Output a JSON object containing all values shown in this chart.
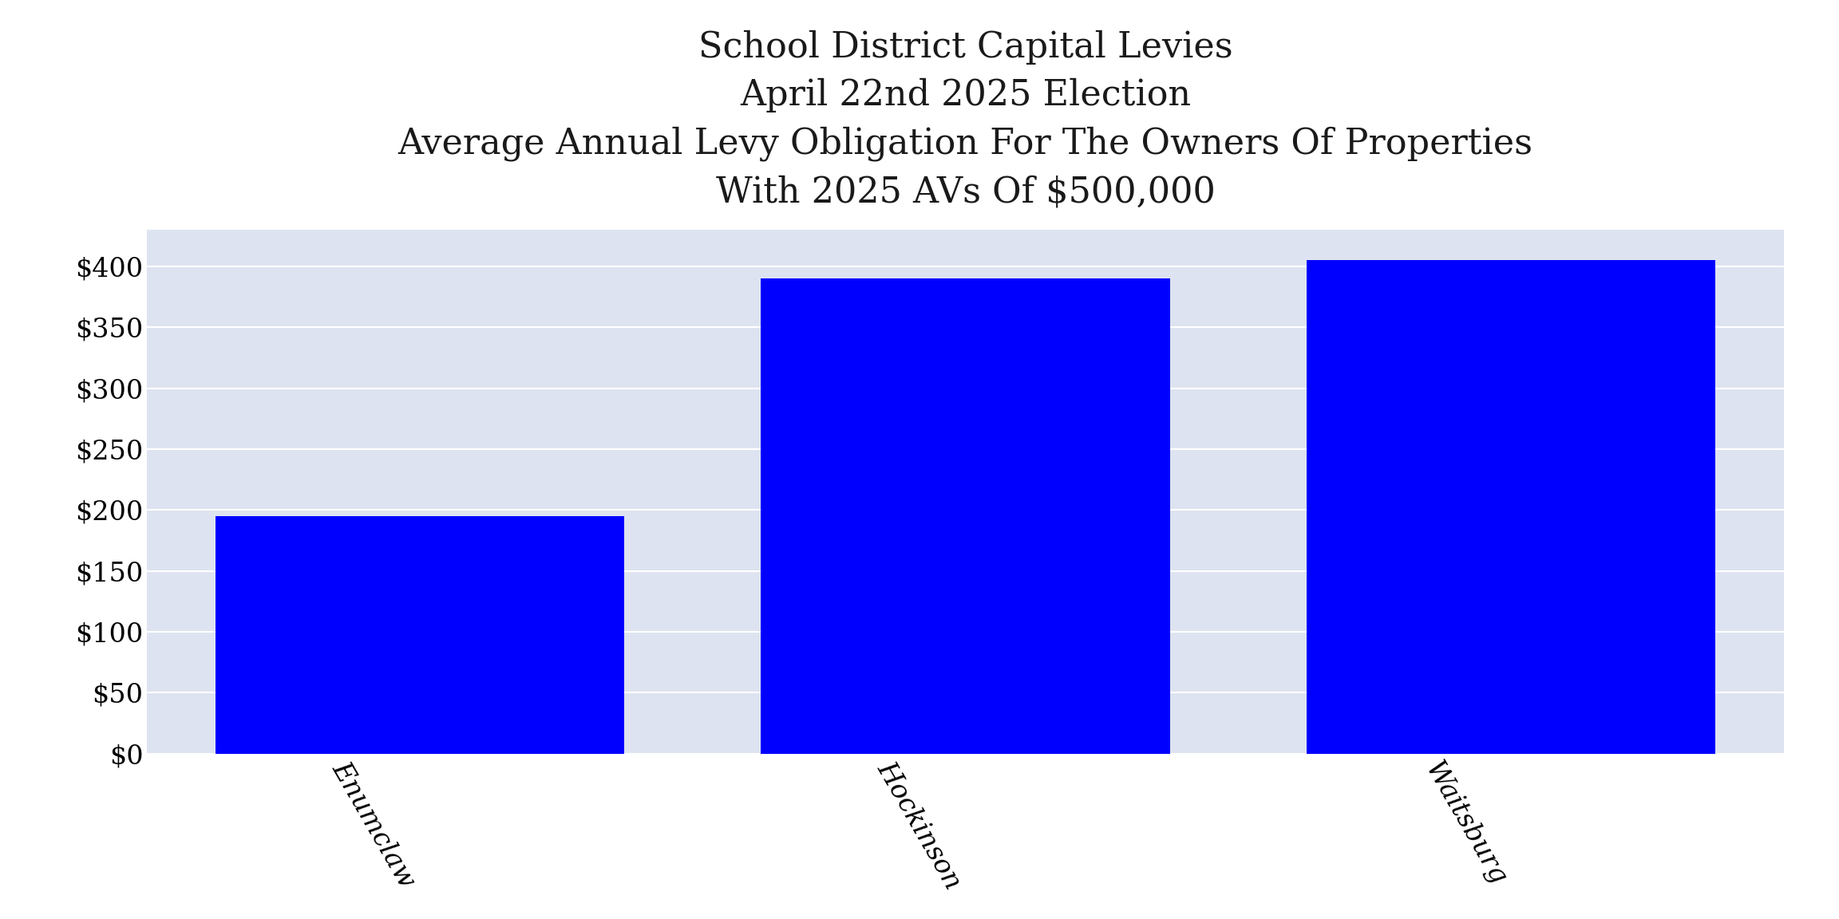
{
  "categories": [
    "Enumclaw",
    "Hockinson",
    "Waitsburg"
  ],
  "values": [
    195,
    390,
    405
  ],
  "bar_color": "#0000FF",
  "title_line1": "School District Capital Levies",
  "title_line2": "April 22nd 2025 Election",
  "title_line3": "Average Annual Levy Obligation For The Owners Of Properties",
  "title_line4": "With 2025 AVs Of $500,000",
  "ylim": [
    0,
    430
  ],
  "yticks": [
    0,
    50,
    100,
    150,
    200,
    250,
    300,
    350,
    400
  ],
  "ytick_labels": [
    "$0",
    "$50",
    "$100",
    "$150",
    "$200",
    "$250",
    "$300",
    "$350",
    "$400"
  ],
  "axes_background_color": "#dde3f0",
  "figure_background": "#ffffff",
  "title_fontsize": 32,
  "tick_fontsize": 24,
  "xlabel_rotation": -60,
  "bar_width": 0.75,
  "grid_color": "#ffffff",
  "grid_linewidth": 1.5
}
